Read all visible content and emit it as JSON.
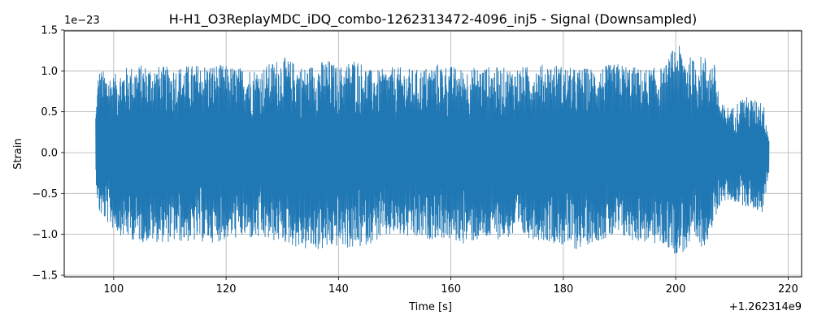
{
  "chart_data": {
    "type": "line",
    "title": "H-H1_O3ReplayMDC_iDQ_combo-1262313472-4096_inj5 - Signal (Downsampled)",
    "xlabel": "Time [s]",
    "ylabel": "Strain",
    "x_offset_label": "+1.262314e9",
    "y_scale_label": "1e−23",
    "xlim": [
      91.2,
      222.4
    ],
    "ylim": [
      -1.52,
      1.49
    ],
    "x_ticks": [
      100,
      120,
      140,
      160,
      180,
      200,
      220
    ],
    "x_tick_labels": [
      "100",
      "120",
      "140",
      "160",
      "180",
      "200",
      "220"
    ],
    "y_ticks": [
      -1.5,
      -1.0,
      -0.5,
      0.0,
      0.5,
      1.0,
      1.5
    ],
    "y_tick_labels": [
      "−1.5",
      "−1.0",
      "−0.5",
      "0.0",
      "0.5",
      "1.0",
      "1.5"
    ],
    "grid": true,
    "series": [
      {
        "color": "#1f77b4",
        "x_start": 96.8,
        "x_end": 216.6,
        "envelope_upper": [
          [
            96.8,
            0.5
          ],
          [
            97.3,
            1.03
          ],
          [
            100,
            0.95
          ],
          [
            102,
            1.05
          ],
          [
            105,
            1.08
          ],
          [
            110,
            1.05
          ],
          [
            114,
            1.08
          ],
          [
            118,
            1.09
          ],
          [
            122,
            1.05
          ],
          [
            126,
            1.03
          ],
          [
            130,
            1.18
          ],
          [
            134,
            1.05
          ],
          [
            138,
            1.15
          ],
          [
            140,
            1.05
          ],
          [
            143,
            1.17
          ],
          [
            146,
            1.0
          ],
          [
            150,
            1.05
          ],
          [
            154,
            1.02
          ],
          [
            158,
            1.1
          ],
          [
            162,
            1.03
          ],
          [
            166,
            1.06
          ],
          [
            170,
            1.04
          ],
          [
            174,
            1.06
          ],
          [
            178,
            1.1
          ],
          [
            182,
            1.03
          ],
          [
            186,
            1.05
          ],
          [
            190,
            1.1
          ],
          [
            194,
            1.03
          ],
          [
            198,
            1.05
          ],
          [
            200,
            1.35
          ],
          [
            203,
            1.15
          ],
          [
            205,
            1.2
          ],
          [
            207,
            1.08
          ],
          [
            208,
            0.6
          ],
          [
            210,
            0.55
          ],
          [
            212,
            0.7
          ],
          [
            214,
            0.65
          ],
          [
            215.5,
            0.65
          ],
          [
            216.6,
            0.2
          ]
        ],
        "envelope_lower": [
          [
            96.8,
            -0.3
          ],
          [
            97.3,
            -0.75
          ],
          [
            100,
            -0.95
          ],
          [
            102,
            -1.05
          ],
          [
            105,
            -1.1
          ],
          [
            110,
            -1.1
          ],
          [
            114,
            -1.1
          ],
          [
            118,
            -1.1
          ],
          [
            122,
            -1.05
          ],
          [
            126,
            -1.08
          ],
          [
            130,
            -1.1
          ],
          [
            134,
            -1.2
          ],
          [
            138,
            -1.2
          ],
          [
            140,
            -1.15
          ],
          [
            143,
            -1.2
          ],
          [
            146,
            -1.1
          ],
          [
            150,
            -1.02
          ],
          [
            154,
            -1.08
          ],
          [
            158,
            -1.05
          ],
          [
            162,
            -1.12
          ],
          [
            166,
            -1.08
          ],
          [
            170,
            -1.05
          ],
          [
            174,
            -1.05
          ],
          [
            178,
            -1.1
          ],
          [
            182,
            -1.2
          ],
          [
            186,
            -1.08
          ],
          [
            190,
            -1.05
          ],
          [
            194,
            -1.1
          ],
          [
            198,
            -1.15
          ],
          [
            200,
            -1.25
          ],
          [
            203,
            -1.2
          ],
          [
            205,
            -1.15
          ],
          [
            207,
            -0.9
          ],
          [
            208,
            -0.6
          ],
          [
            210,
            -0.6
          ],
          [
            212,
            -0.65
          ],
          [
            214,
            -0.7
          ],
          [
            215.5,
            -0.75
          ],
          [
            216.6,
            -0.25
          ]
        ]
      }
    ]
  }
}
